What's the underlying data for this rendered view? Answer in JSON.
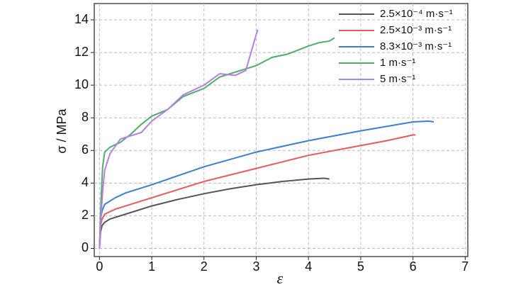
{
  "chart_data": {
    "type": "line",
    "x_label": "ε",
    "y_label": "σ / MPa",
    "xlim": [
      -0.1,
      7.05
    ],
    "ylim": [
      -0.5,
      15
    ],
    "xticks": [
      0,
      1,
      2,
      3,
      4,
      5,
      6,
      7
    ],
    "yticks": [
      0,
      2,
      4,
      6,
      8,
      10,
      12,
      14
    ],
    "grid": true,
    "legend": "upper right",
    "series": [
      {
        "name": "2.5×10⁻⁴ m·s⁻¹",
        "color": "#555555",
        "x": [
          0,
          0.02,
          0.05,
          0.1,
          0.2,
          0.5,
          1,
          1.5,
          2,
          2.5,
          3,
          3.5,
          4,
          4.3,
          4.4
        ],
        "values": [
          0,
          1,
          1.4,
          1.6,
          1.8,
          2.1,
          2.6,
          3.0,
          3.35,
          3.65,
          3.9,
          4.1,
          4.25,
          4.3,
          4.25
        ]
      },
      {
        "name": "2.5×10⁻³ m·s⁻¹",
        "color": "#e8595e",
        "x": [
          0,
          0.02,
          0.05,
          0.1,
          0.3,
          0.5,
          1,
          1.5,
          2,
          3,
          4,
          5,
          5.5,
          6,
          6.05
        ],
        "values": [
          0,
          1.4,
          1.8,
          2.1,
          2.4,
          2.6,
          3.1,
          3.6,
          4.1,
          4.9,
          5.7,
          6.3,
          6.6,
          6.95,
          6.95
        ]
      },
      {
        "name": "8.3×10⁻³ m·s⁻¹",
        "color": "#3a7fd0",
        "x": [
          0,
          0.02,
          0.05,
          0.1,
          0.3,
          0.5,
          1,
          1.5,
          2,
          3,
          4,
          5,
          6,
          6.3,
          6.4
        ],
        "values": [
          0,
          1.8,
          2.3,
          2.7,
          3.1,
          3.4,
          3.9,
          4.45,
          5.0,
          5.9,
          6.6,
          7.2,
          7.75,
          7.8,
          7.75
        ]
      },
      {
        "name": "1 m·s⁻¹",
        "color": "#4daf6a",
        "x": [
          0,
          0.03,
          0.06,
          0.1,
          0.2,
          0.4,
          0.6,
          0.8,
          1,
          1.3,
          1.6,
          2,
          2.3,
          2.6,
          3,
          3.3,
          3.6,
          4,
          4.2,
          4.4,
          4.5
        ],
        "values": [
          0,
          3,
          5,
          5.9,
          6.2,
          6.5,
          7.0,
          7.6,
          8.1,
          8.5,
          9.3,
          9.8,
          10.5,
          10.8,
          11.2,
          11.7,
          11.9,
          12.4,
          12.6,
          12.7,
          12.9
        ]
      },
      {
        "name": "5 m·s⁻¹",
        "color": "#b67ee0",
        "x": [
          0,
          0.03,
          0.06,
          0.1,
          0.2,
          0.4,
          0.6,
          0.8,
          1,
          1.3,
          1.6,
          2,
          2.3,
          2.6,
          2.8,
          2.9,
          3,
          3.03
        ],
        "values": [
          0,
          2,
          3.5,
          4.8,
          5.8,
          6.7,
          6.9,
          7.1,
          7.8,
          8.5,
          9.4,
          10,
          10.7,
          10.6,
          10.9,
          12,
          13.1,
          13.4
        ]
      }
    ]
  }
}
